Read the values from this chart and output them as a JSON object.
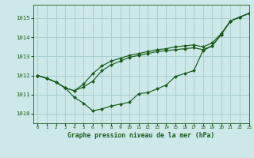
{
  "title": "Graphe pression niveau de la mer (hPa)",
  "background_color": "#cce8e8",
  "grid_color": "#aacfcf",
  "line_color": "#1a5c1a",
  "marker_color": "#1a5c1a",
  "xlim": [
    -0.5,
    23
  ],
  "ylim": [
    1009.5,
    1015.7
  ],
  "yticks": [
    1010,
    1011,
    1012,
    1013,
    1014,
    1015
  ],
  "xticks": [
    0,
    1,
    2,
    3,
    4,
    5,
    6,
    7,
    8,
    9,
    10,
    11,
    12,
    13,
    14,
    15,
    16,
    17,
    18,
    19,
    20,
    21,
    22,
    23
  ],
  "series1": [
    1012.0,
    1011.85,
    1011.65,
    1011.35,
    1010.85,
    1010.55,
    1010.15,
    1010.25,
    1010.4,
    1010.5,
    1010.6,
    1011.05,
    1011.1,
    1011.3,
    1011.5,
    1011.95,
    1012.1,
    1012.25,
    1013.3,
    1013.55,
    1014.15,
    1014.85,
    1015.05,
    1015.25
  ],
  "series2": [
    1012.0,
    1011.85,
    1011.65,
    1011.35,
    1011.2,
    1011.4,
    1011.7,
    1012.25,
    1012.55,
    1012.75,
    1012.95,
    1013.05,
    1013.15,
    1013.25,
    1013.3,
    1013.35,
    1013.4,
    1013.45,
    1013.35,
    1013.55,
    1014.15,
    1014.85,
    1015.05,
    1015.25
  ],
  "series3": [
    1012.0,
    1011.85,
    1011.65,
    1011.35,
    1011.2,
    1011.55,
    1012.1,
    1012.5,
    1012.75,
    1012.9,
    1013.05,
    1013.15,
    1013.25,
    1013.35,
    1013.4,
    1013.5,
    1013.55,
    1013.6,
    1013.5,
    1013.7,
    1014.2,
    1014.85,
    1015.05,
    1015.25
  ]
}
